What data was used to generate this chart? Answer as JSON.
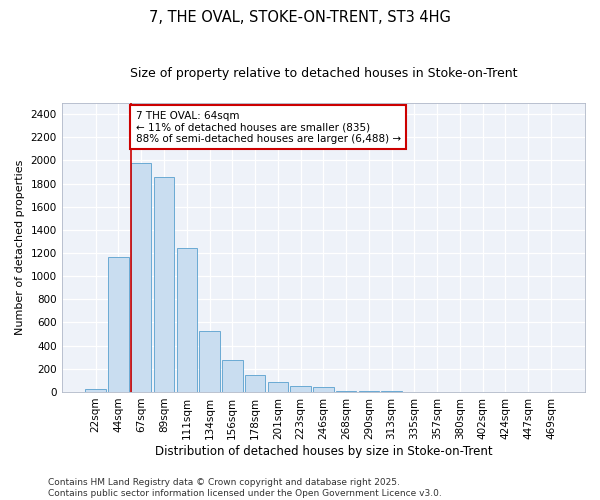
{
  "title": "7, THE OVAL, STOKE-ON-TRENT, ST3 4HG",
  "subtitle": "Size of property relative to detached houses in Stoke-on-Trent",
  "xlabel": "Distribution of detached houses by size in Stoke-on-Trent",
  "ylabel": "Number of detached properties",
  "categories": [
    "22sqm",
    "44sqm",
    "67sqm",
    "89sqm",
    "111sqm",
    "134sqm",
    "156sqm",
    "178sqm",
    "201sqm",
    "223sqm",
    "246sqm",
    "268sqm",
    "290sqm",
    "313sqm",
    "335sqm",
    "357sqm",
    "380sqm",
    "402sqm",
    "424sqm",
    "447sqm",
    "469sqm"
  ],
  "values": [
    25,
    1165,
    1975,
    1855,
    1245,
    525,
    275,
    150,
    85,
    50,
    40,
    5,
    5,
    5,
    2,
    2,
    2,
    2,
    1,
    1,
    1
  ],
  "bar_color": "#c9ddf0",
  "bar_edge_color": "#6aaad4",
  "bg_color": "#eef2f9",
  "grid_color": "#ffffff",
  "vline_color": "#cc0000",
  "vline_x": 2.0,
  "annotation_text": "7 THE OVAL: 64sqm\n← 11% of detached houses are smaller (835)\n88% of semi-detached houses are larger (6,488) →",
  "annotation_box_color": "#ffffff",
  "annotation_box_edge": "#cc0000",
  "ylim": [
    0,
    2500
  ],
  "yticks": [
    0,
    200,
    400,
    600,
    800,
    1000,
    1200,
    1400,
    1600,
    1800,
    2000,
    2200,
    2400
  ],
  "footer": "Contains HM Land Registry data © Crown copyright and database right 2025.\nContains public sector information licensed under the Open Government Licence v3.0.",
  "title_fontsize": 10.5,
  "subtitle_fontsize": 9,
  "xlabel_fontsize": 8.5,
  "ylabel_fontsize": 8,
  "tick_fontsize": 7.5,
  "annotation_fontsize": 7.5,
  "footer_fontsize": 6.5
}
